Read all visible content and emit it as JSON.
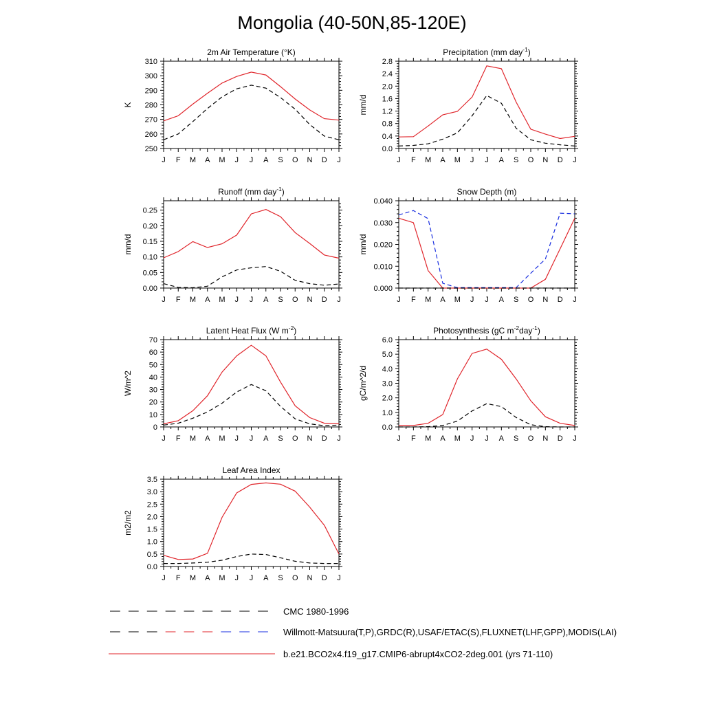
{
  "title": "Mongolia (40-50N,85-120E)",
  "colors": {
    "model": "#e0252b",
    "obs": "#000000",
    "obs_snow": "#1a2fe0"
  },
  "legend": [
    {
      "label": "CMC 1980-1996",
      "style": "dashed",
      "colors": [
        "#000000"
      ]
    },
    {
      "label": "Willmott-Matsuura(T,P),GRDC(R),USAF/ETAC(S),FLUXNET(LHF,GPP),MODIS(LAI)",
      "style": "dashed",
      "colors": [
        "#000000",
        "#e0252b",
        "#1a2fe0"
      ]
    },
    {
      "label": "b.e21.BCO2x4.f19_g17.CMIP6-abrupt4xCO2-2deg.001 (yrs 71-110)",
      "style": "solid",
      "colors": [
        "#e0252b"
      ]
    }
  ],
  "chart_data": [
    {
      "type": "line",
      "title": "2m Air Temperature (°K)",
      "ylabel": "K",
      "categories": [
        "J",
        "F",
        "M",
        "A",
        "M",
        "J",
        "J",
        "A",
        "S",
        "O",
        "N",
        "D",
        "J"
      ],
      "yticks": [
        "250",
        "260",
        "270",
        "280",
        "290",
        "300",
        "310"
      ],
      "ylim": [
        250,
        310
      ],
      "series": [
        {
          "style": "solid",
          "color": "#e0252b",
          "values": [
            269,
            272.5,
            280.5,
            288,
            295,
            299.5,
            302.5,
            300.5,
            292.5,
            284,
            276.5,
            270.5,
            269.5
          ]
        },
        {
          "style": "dashed",
          "color": "#000000",
          "values": [
            256,
            260,
            268.5,
            277.5,
            285.5,
            291,
            293.5,
            291.5,
            285,
            277,
            266.5,
            258.5,
            256
          ]
        }
      ]
    },
    {
      "type": "line",
      "title": "Precipitation (mm day⁻¹)",
      "ylabel": "mm/d",
      "categories": [
        "J",
        "F",
        "M",
        "A",
        "M",
        "J",
        "J",
        "A",
        "S",
        "O",
        "N",
        "D",
        "J"
      ],
      "yticks": [
        "0.0",
        "0.4",
        "0.8",
        "1.2",
        "1.6",
        "2.0",
        "2.4",
        "2.8"
      ],
      "ylim": [
        0,
        2.8
      ],
      "series": [
        {
          "style": "solid",
          "color": "#e0252b",
          "values": [
            0.37,
            0.38,
            0.72,
            1.08,
            1.19,
            1.65,
            2.65,
            2.56,
            1.49,
            0.62,
            0.46,
            0.32,
            0.39
          ]
        },
        {
          "style": "dashed",
          "color": "#000000",
          "values": [
            0.08,
            0.1,
            0.15,
            0.3,
            0.5,
            1.05,
            1.7,
            1.45,
            0.65,
            0.28,
            0.17,
            0.12,
            0.08
          ]
        }
      ]
    },
    {
      "type": "line",
      "title": "Runoff (mm day⁻¹)",
      "ylabel": "mm/d",
      "categories": [
        "J",
        "F",
        "M",
        "A",
        "M",
        "J",
        "J",
        "A",
        "S",
        "O",
        "N",
        "D",
        "J"
      ],
      "yticks": [
        "0.00",
        "0.05",
        "0.10",
        "0.15",
        "0.20",
        "0.25"
      ],
      "ylim": [
        0,
        0.28
      ],
      "series": [
        {
          "style": "solid",
          "color": "#e0252b",
          "values": [
            0.097,
            0.117,
            0.149,
            0.13,
            0.142,
            0.17,
            0.238,
            0.252,
            0.229,
            0.178,
            0.143,
            0.106,
            0.096
          ]
        },
        {
          "style": "dashed",
          "color": "#000000",
          "values": [
            0.014,
            0.002,
            0.001,
            0.006,
            0.036,
            0.058,
            0.065,
            0.069,
            0.054,
            0.025,
            0.014,
            0.009,
            0.013
          ]
        }
      ]
    },
    {
      "type": "line",
      "title": "Snow Depth (m)",
      "ylabel": "mm/d",
      "categories": [
        "J",
        "F",
        "M",
        "A",
        "M",
        "J",
        "J",
        "A",
        "S",
        "O",
        "N",
        "D",
        "J"
      ],
      "yticks": [
        "0.000",
        "0.010",
        "0.020",
        "0.030",
        "0.040"
      ],
      "ylim": [
        0,
        0.04
      ],
      "series": [
        {
          "style": "solid",
          "color": "#e0252b",
          "values": [
            0.032,
            0.03,
            0.008,
            0,
            0,
            0,
            0,
            0,
            0,
            0,
            0.004,
            0.018,
            0.032
          ]
        },
        {
          "style": "dashed",
          "color": "#1a2fe0",
          "values": [
            0.0335,
            0.0355,
            0.0318,
            0.0022,
            0.0002,
            0.0002,
            0.0002,
            0.0002,
            0.0002,
            0.0068,
            0.0133,
            0.0343,
            0.034
          ]
        },
        {
          "style": "dashed",
          "color": "#000000",
          "values": [
            0,
            0,
            0,
            0,
            0,
            0,
            0,
            0,
            0,
            0,
            0,
            0,
            0
          ]
        }
      ]
    },
    {
      "type": "line",
      "title": "Latent Heat Flux (W m⁻²)",
      "ylabel": "W/m^2",
      "categories": [
        "J",
        "F",
        "M",
        "A",
        "M",
        "J",
        "J",
        "A",
        "S",
        "O",
        "N",
        "D",
        "J"
      ],
      "yticks": [
        "0",
        "10",
        "20",
        "30",
        "40",
        "50",
        "60",
        "70"
      ],
      "ylim": [
        0,
        70
      ],
      "series": [
        {
          "style": "solid",
          "color": "#e0252b",
          "values": [
            2.5,
            5,
            13,
            25,
            44,
            57,
            65.5,
            57,
            36,
            17,
            7.5,
            3,
            2.5
          ]
        },
        {
          "style": "dashed",
          "color": "#000000",
          "values": [
            1.5,
            3,
            7,
            12,
            19,
            28,
            34,
            29,
            16.5,
            6.5,
            2.5,
            1,
            1.5
          ]
        }
      ]
    },
    {
      "type": "line",
      "title": "Photosynthesis (gC m⁻²day⁻¹)",
      "ylabel": "gC/m^2/d",
      "categories": [
        "J",
        "F",
        "M",
        "A",
        "M",
        "J",
        "J",
        "A",
        "S",
        "O",
        "N",
        "D",
        "J"
      ],
      "yticks": [
        "0.0",
        "1.0",
        "2.0",
        "3.0",
        "4.0",
        "5.0",
        "6.0"
      ],
      "ylim": [
        0,
        6
      ],
      "series": [
        {
          "style": "solid",
          "color": "#e0252b",
          "values": [
            0.1,
            0.1,
            0.25,
            0.85,
            3.3,
            5.05,
            5.35,
            4.65,
            3.3,
            1.8,
            0.7,
            0.25,
            0.1
          ]
        },
        {
          "style": "dashed",
          "color": "#000000",
          "values": [
            0,
            0,
            0.02,
            0.1,
            0.4,
            1.1,
            1.6,
            1.4,
            0.65,
            0.15,
            0.02,
            0,
            0
          ]
        }
      ]
    },
    {
      "type": "line",
      "title": "Leaf Area Index",
      "ylabel": "m2/m2",
      "categories": [
        "J",
        "F",
        "M",
        "A",
        "M",
        "J",
        "J",
        "A",
        "S",
        "O",
        "N",
        "D",
        "J"
      ],
      "yticks": [
        "0.0",
        "0.5",
        "1.0",
        "1.5",
        "2.0",
        "2.5",
        "3.0",
        "3.5"
      ],
      "ylim": [
        0,
        3.5
      ],
      "series": [
        {
          "style": "solid",
          "color": "#e0252b",
          "values": [
            0.45,
            0.28,
            0.3,
            0.53,
            1.97,
            2.95,
            3.29,
            3.35,
            3.3,
            3.02,
            2.38,
            1.65,
            0.5
          ]
        },
        {
          "style": "dashed",
          "color": "#000000",
          "values": [
            0.12,
            0.12,
            0.14,
            0.17,
            0.25,
            0.4,
            0.5,
            0.48,
            0.35,
            0.21,
            0.14,
            0.12,
            0.12
          ]
        }
      ]
    }
  ]
}
